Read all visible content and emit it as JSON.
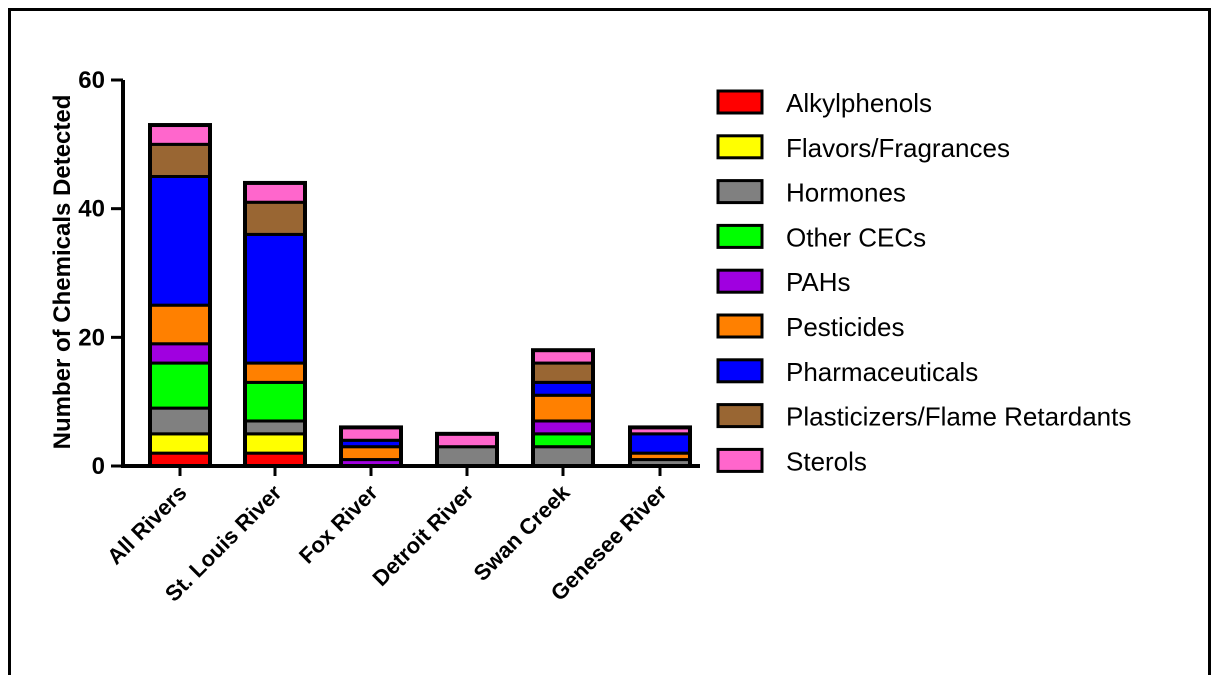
{
  "chart_data": {
    "type": "bar",
    "stacked": true,
    "ylabel": "Number of Chemicals Detected",
    "xlabel": "",
    "ylim": [
      0,
      60
    ],
    "yticks": [
      0,
      20,
      40,
      60
    ],
    "grid": false,
    "legend_position": "right",
    "categories": [
      "All Rivers",
      "St. Louis River",
      "Fox River",
      "Detroit River",
      "Swan Creek",
      "Genesee River"
    ],
    "series": [
      {
        "name": "Alkylphenols",
        "color": "#ff0000",
        "values": [
          2,
          2,
          0,
          0,
          0,
          0
        ]
      },
      {
        "name": "Flavors/Fragrances",
        "color": "#ffff00",
        "values": [
          3,
          3,
          0,
          0,
          0,
          0
        ]
      },
      {
        "name": "Hormones",
        "color": "#808080",
        "values": [
          4,
          2,
          0,
          3,
          3,
          1
        ]
      },
      {
        "name": "Other CECs",
        "color": "#00ff00",
        "values": [
          7,
          6,
          0,
          0,
          2,
          0
        ]
      },
      {
        "name": "PAHs",
        "color": "#a000e0",
        "values": [
          3,
          0,
          1,
          0,
          2,
          0
        ]
      },
      {
        "name": "Pesticides",
        "color": "#ff8000",
        "values": [
          6,
          3,
          2,
          0,
          4,
          1
        ]
      },
      {
        "name": "Pharmaceuticals",
        "color": "#0000ff",
        "values": [
          20,
          20,
          1,
          0,
          2,
          3
        ]
      },
      {
        "name": "Plasticizers/Flame Retardants",
        "color": "#996633",
        "values": [
          5,
          5,
          0,
          0,
          3,
          0
        ]
      },
      {
        "name": "Sterols",
        "color": "#ff66cc",
        "values": [
          3,
          3,
          2,
          2,
          2,
          1
        ]
      }
    ]
  }
}
